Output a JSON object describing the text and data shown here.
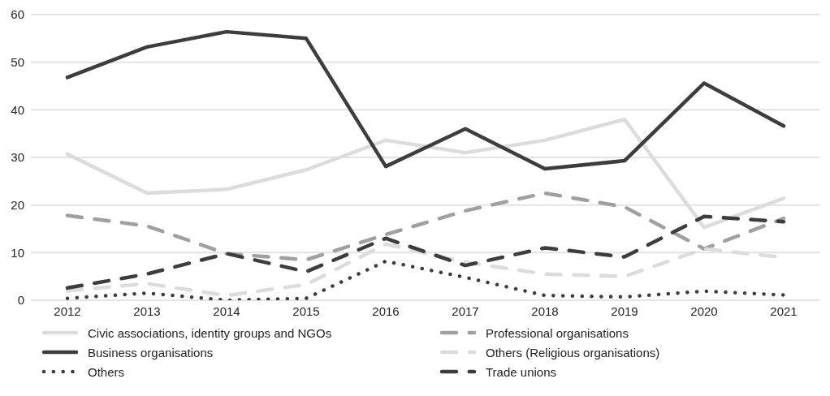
{
  "chart_data": {
    "type": "line",
    "categories": [
      "2012",
      "2013",
      "2014",
      "2015",
      "2016",
      "2017",
      "2018",
      "2019",
      "2020",
      "2021"
    ],
    "series": [
      {
        "name": "Civic associations, identity groups and NGOs",
        "color": "#dcdcdc",
        "line_style": "solid",
        "values": [
          30.7,
          22.5,
          23.3,
          27.4,
          33.6,
          31,
          33.6,
          38,
          15.3,
          21.4
        ]
      },
      {
        "name": "Professional organisations",
        "color": "#a0a0a0",
        "line_style": "dashed",
        "values": [
          17.8,
          15.6,
          9.8,
          8.5,
          13.8,
          18.8,
          22.5,
          19.6,
          10.8,
          17.2
        ]
      },
      {
        "name": "Business organisations",
        "color": "#3d3d3d",
        "line_style": "solid",
        "values": [
          46.8,
          53.2,
          56.4,
          55,
          28.1,
          36,
          27.6,
          29.3,
          45.6,
          36.6
        ]
      },
      {
        "name": "Others (Religious organisations)",
        "color": "#dcdcdc",
        "line_style": "dashed",
        "values": [
          2,
          3.5,
          1,
          3.3,
          11.8,
          8,
          5.5,
          5,
          10.8,
          9
        ]
      },
      {
        "name": "Others",
        "color": "#3d3d3d",
        "line_style": "dotted",
        "values": [
          0.4,
          1.5,
          0,
          0.4,
          8.2,
          4.8,
          1,
          0.7,
          1.9,
          1.1
        ]
      },
      {
        "name": "Trade unions",
        "color": "#3d3d3d",
        "line_style": "dashed",
        "values": [
          2.6,
          5.5,
          9.8,
          6,
          13,
          7.3,
          11,
          9.1,
          17.6,
          16.5
        ]
      }
    ],
    "ylim": [
      0,
      60
    ],
    "yticks": [
      0,
      10,
      20,
      30,
      40,
      50,
      60
    ],
    "grid": "y",
    "legend": "bottom",
    "marker": "none"
  }
}
